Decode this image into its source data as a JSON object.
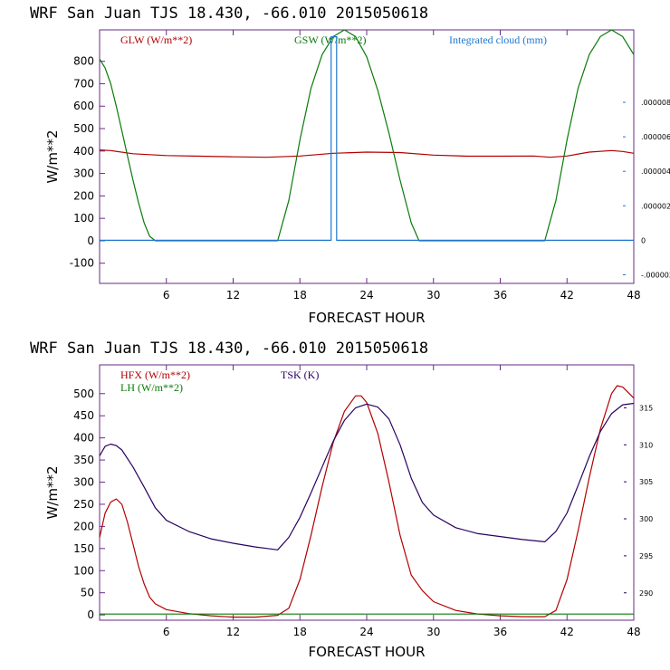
{
  "colors": {
    "red": "#b20000",
    "green": "#0a7a0a",
    "blue": "#1f78d0",
    "purple": "#2a0060",
    "axis": "#6a2a86"
  },
  "chart_data": [
    {
      "type": "line",
      "title": "WRF  San Juan TJS  18.430, -66.010  2015050618",
      "xlabel": "FORECAST HOUR",
      "ylabel": "W/m**2",
      "xlim": [
        0,
        48
      ],
      "ylim": [
        -190,
        940
      ],
      "x_ticks": [
        "6",
        "12",
        "18",
        "24",
        "30",
        "36",
        "42",
        "48"
      ],
      "y_ticks": [
        "-100",
        "0",
        "100",
        "200",
        "300",
        "400",
        "500",
        "600",
        "700",
        "800"
      ],
      "right_ticks": [
        "-.000002",
        "0",
        ".000002",
        ".000004",
        ".000006",
        ".000008"
      ],
      "right_lim": [
        -2.5e-06,
        1.22e-05
      ],
      "legend": [
        "GLW (W/m**2)",
        "GSW (W/m**2)",
        "Integrated cloud (mm)"
      ],
      "series": [
        {
          "name": "GLW (W/m**2)",
          "axis": "left",
          "x": [
            0,
            1,
            3,
            6,
            9,
            12,
            15,
            18,
            21,
            24,
            27,
            30,
            33,
            36,
            39,
            40.5,
            42,
            44,
            46,
            47,
            48
          ],
          "y": [
            405,
            402,
            388,
            380,
            377,
            374,
            372,
            378,
            390,
            395,
            393,
            382,
            377,
            377,
            378,
            372,
            378,
            395,
            402,
            398,
            390
          ]
        },
        {
          "name": "GSW (W/m**2)",
          "axis": "left",
          "x": [
            0,
            0.5,
            1,
            1.5,
            2,
            2.5,
            3,
            3.5,
            4,
            4.5,
            5,
            16,
            17,
            18,
            19,
            20,
            21,
            22,
            23,
            24,
            25,
            26,
            27,
            28,
            28.7,
            40,
            41,
            42,
            43,
            44,
            45,
            46,
            47,
            48
          ],
          "y": [
            810,
            770,
            700,
            600,
            490,
            380,
            270,
            170,
            80,
            20,
            0,
            0,
            180,
            450,
            680,
            830,
            910,
            940,
            910,
            820,
            670,
            480,
            270,
            80,
            0,
            0,
            180,
            450,
            680,
            830,
            910,
            940,
            910,
            830
          ]
        },
        {
          "name": "Integrated cloud (mm)",
          "axis": "right",
          "x": [
            0,
            20.8,
            20.8,
            21.3,
            21.3,
            48
          ],
          "y": [
            0,
            0,
            1.18e-05,
            1.18e-05,
            0,
            0
          ]
        }
      ]
    },
    {
      "type": "line",
      "title": "WRF  San Juan TJS  18.430, -66.010  2015050618",
      "xlabel": "FORECAST HOUR",
      "ylabel": "W/m**2",
      "xlim": [
        0,
        48
      ],
      "ylim": [
        -12,
        565
      ],
      "x_ticks": [
        "6",
        "12",
        "18",
        "24",
        "30",
        "36",
        "42",
        "48"
      ],
      "y_ticks": [
        "0",
        "50",
        "100",
        "150",
        "200",
        "250",
        "300",
        "350",
        "400",
        "450",
        "500"
      ],
      "right_ticks": [
        "290",
        "295",
        "300",
        "305",
        "310",
        "315"
      ],
      "right_lim": [
        286.3,
        320.8
      ],
      "legend": [
        "HFX (W/m**2)",
        "LH  (W/m**2)",
        "TSK (K)"
      ],
      "series": [
        {
          "name": "HFX (W/m**2)",
          "axis": "left",
          "x": [
            0,
            0.5,
            1,
            1.5,
            2,
            2.5,
            3,
            3.5,
            4,
            4.5,
            5,
            6,
            8,
            10,
            12,
            14,
            15,
            16,
            17,
            18,
            19,
            20,
            21,
            22,
            23,
            23.5,
            24,
            25,
            26,
            27,
            28,
            29,
            30,
            32,
            34,
            36,
            38,
            40,
            41,
            42,
            43,
            44,
            45,
            46,
            46.5,
            47,
            48
          ],
          "y": [
            175,
            230,
            255,
            262,
            250,
            210,
            160,
            110,
            70,
            40,
            25,
            12,
            3,
            -2,
            -5,
            -5,
            -3,
            -1,
            15,
            80,
            180,
            290,
            390,
            460,
            495,
            495,
            480,
            410,
            300,
            180,
            90,
            55,
            30,
            10,
            2,
            -2,
            -4,
            -4,
            10,
            80,
            190,
            310,
            420,
            500,
            518,
            515,
            490
          ]
        },
        {
          "name": "LH  (W/m**2)",
          "axis": "left",
          "x": [
            0,
            48
          ],
          "y": [
            2,
            2
          ]
        },
        {
          "name": "TSK (K)",
          "axis": "right",
          "x": [
            0,
            0.5,
            1,
            1.5,
            2,
            3,
            4,
            5,
            6,
            8,
            10,
            12,
            14,
            15,
            16,
            17,
            18,
            19,
            20,
            21,
            22,
            23,
            24,
            25,
            26,
            27,
            28,
            29,
            30,
            32,
            34,
            36,
            38,
            40,
            41,
            42,
            43,
            44,
            45,
            46,
            47,
            48
          ],
          "y": [
            308.5,
            309.8,
            310.1,
            309.9,
            309.3,
            307.0,
            304.3,
            301.5,
            299.8,
            298.3,
            297.3,
            296.7,
            296.2,
            296.0,
            295.8,
            297.5,
            300.2,
            303.5,
            307.0,
            310.5,
            313.3,
            315.0,
            315.5,
            315.1,
            313.5,
            310.0,
            305.5,
            302.2,
            300.5,
            298.8,
            298.0,
            297.6,
            297.2,
            296.9,
            298.3,
            300.8,
            304.5,
            308.4,
            311.8,
            314.2,
            315.4,
            315.6
          ]
        }
      ]
    }
  ]
}
